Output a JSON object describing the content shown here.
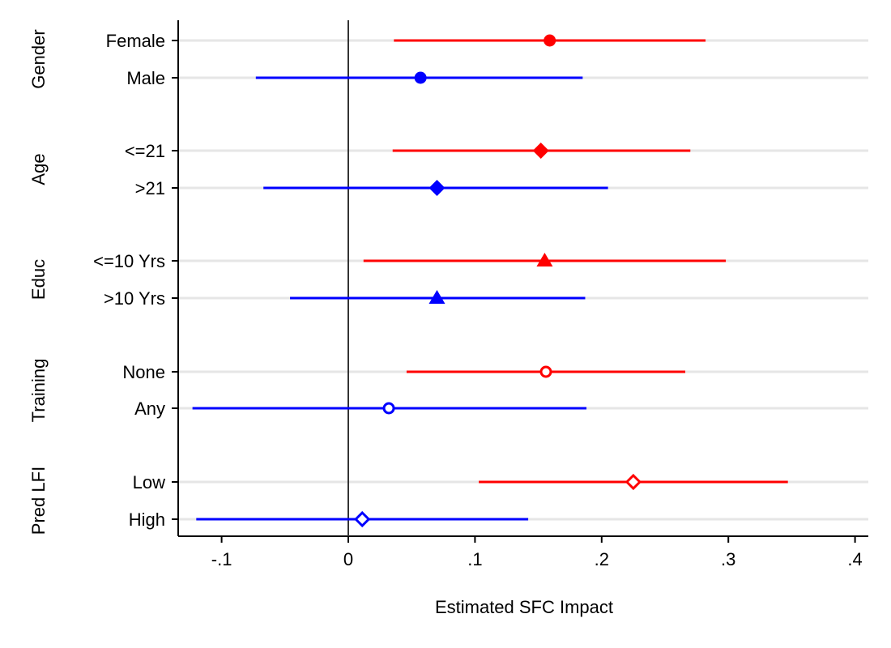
{
  "chart_data": {
    "type": "forest",
    "title": "",
    "xlabel": "Estimated SFC Impact",
    "ylabel": "",
    "xlim": [
      -0.135,
      0.405
    ],
    "xticks": [
      {
        "value": -0.1,
        "label": "-.1"
      },
      {
        "value": 0,
        "label": "0"
      },
      {
        "value": 0.1,
        "label": ".1"
      },
      {
        "value": 0.2,
        "label": ".2"
      },
      {
        "value": 0.3,
        "label": ".3"
      },
      {
        "value": 0.4,
        "label": ".4"
      }
    ],
    "reference_line": 0,
    "colors": {
      "red": "#ff0000",
      "blue": "#0000ff",
      "grid": "#e6e6e6",
      "axis": "#000000"
    },
    "groups": [
      {
        "name": "Gender",
        "rows": [
          {
            "label": "Female",
            "estimate": 0.159,
            "ci": [
              0.036,
              0.282
            ],
            "color": "red",
            "marker": "circle-filled"
          },
          {
            "label": "Male",
            "estimate": 0.057,
            "ci": [
              -0.073,
              0.185
            ],
            "color": "blue",
            "marker": "circle-filled"
          }
        ]
      },
      {
        "name": "Age",
        "rows": [
          {
            "label": "<=21",
            "estimate": 0.152,
            "ci": [
              0.035,
              0.27
            ],
            "color": "red",
            "marker": "diamond-filled"
          },
          {
            "label": ">21",
            "estimate": 0.07,
            "ci": [
              -0.067,
              0.205
            ],
            "color": "blue",
            "marker": "diamond-filled"
          }
        ]
      },
      {
        "name": "Educ",
        "rows": [
          {
            "label": "<=10 Yrs",
            "estimate": 0.155,
            "ci": [
              0.012,
              0.298
            ],
            "color": "red",
            "marker": "triangle-filled"
          },
          {
            "label": ">10 Yrs",
            "estimate": 0.07,
            "ci": [
              -0.046,
              0.187
            ],
            "color": "blue",
            "marker": "triangle-filled"
          }
        ]
      },
      {
        "name": "Training",
        "rows": [
          {
            "label": "None",
            "estimate": 0.156,
            "ci": [
              0.046,
              0.266
            ],
            "color": "red",
            "marker": "circle-hollow"
          },
          {
            "label": "Any",
            "estimate": 0.032,
            "ci": [
              -0.123,
              0.188
            ],
            "color": "blue",
            "marker": "circle-hollow"
          }
        ]
      },
      {
        "name": "Pred LFI",
        "rows": [
          {
            "label": "Low",
            "estimate": 0.225,
            "ci": [
              0.103,
              0.347
            ],
            "color": "red",
            "marker": "diamond-hollow"
          },
          {
            "label": "High",
            "estimate": 0.011,
            "ci": [
              -0.12,
              0.142
            ],
            "color": "blue",
            "marker": "diamond-hollow"
          }
        ]
      }
    ]
  }
}
